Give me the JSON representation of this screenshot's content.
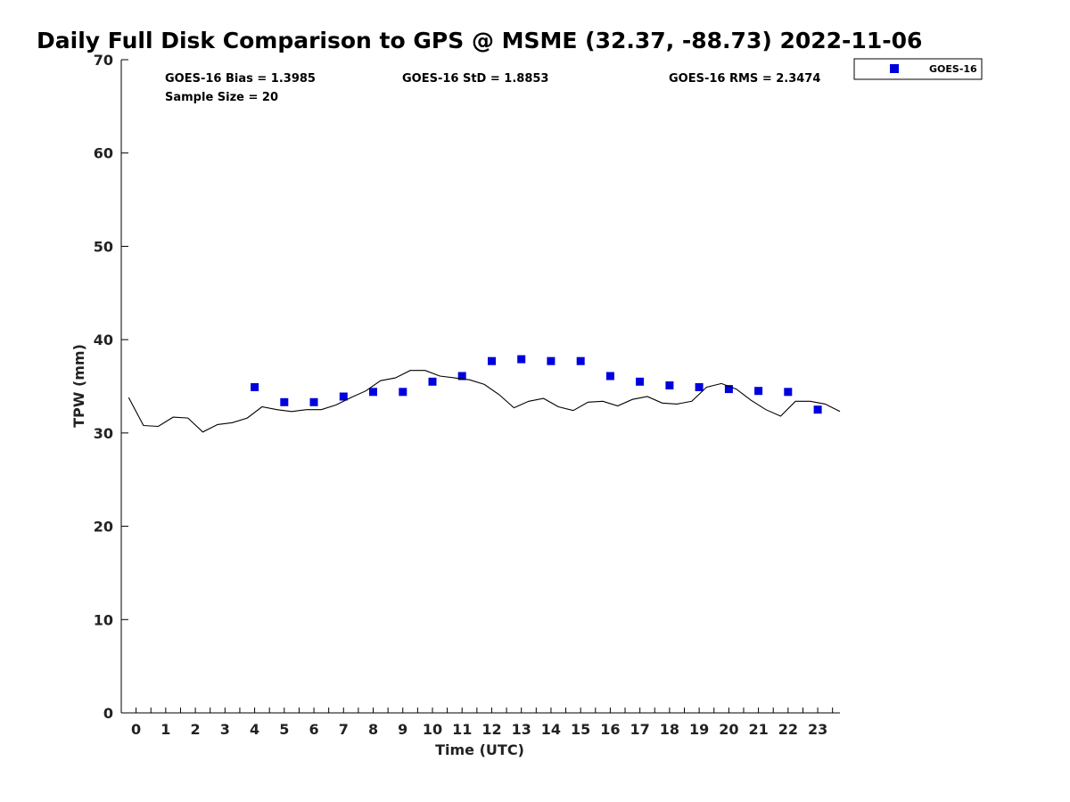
{
  "chart_data": {
    "type": "scatter",
    "title": "Daily Full Disk Comparison to GPS @ MSME (32.37, -88.73) 2022-11-06",
    "xlabel": "Time (UTC)",
    "ylabel": "TPW (mm)",
    "xlim": [
      -0.5,
      23.75
    ],
    "ylim": [
      0,
      70
    ],
    "x_ticks": [
      "0",
      "1",
      "2",
      "3",
      "4",
      "5",
      "6",
      "7",
      "8",
      "9",
      "10",
      "11",
      "12",
      "13",
      "14",
      "15",
      "16",
      "17",
      "18",
      "19",
      "20",
      "21",
      "22",
      "23"
    ],
    "y_ticks": [
      "0",
      "10",
      "20",
      "30",
      "40",
      "50",
      "60",
      "70"
    ],
    "grid": false,
    "stats": {
      "bias": "GOES-16 Bias = 1.3985",
      "std": "GOES-16 StD = 1.8853",
      "rms": "GOES-16 RMS = 2.3474",
      "sample": "Sample Size = 20"
    },
    "legend": {
      "position": "top-right-outside",
      "entries": [
        "GOES-16"
      ]
    },
    "series": [
      {
        "name": "GOES-16",
        "kind": "scatter",
        "marker": "square",
        "color": "#0000dd",
        "x": [
          4,
          5,
          6,
          7,
          8,
          9,
          10,
          11,
          12,
          13,
          14,
          15,
          16,
          17,
          18,
          19,
          20,
          21,
          22,
          23
        ],
        "y": [
          34.9,
          33.3,
          33.3,
          33.9,
          34.4,
          34.4,
          35.5,
          36.1,
          37.7,
          37.9,
          37.7,
          37.7,
          36.1,
          35.5,
          35.1,
          34.9,
          34.7,
          34.5,
          34.4,
          32.5
        ]
      },
      {
        "kind": "line",
        "color": "#000000",
        "x": [
          -0.25,
          0.25,
          0.75,
          1.25,
          1.75,
          2.25,
          2.75,
          3.25,
          3.75,
          4.25,
          4.75,
          5.25,
          5.75,
          6.25,
          6.75,
          7.25,
          7.75,
          8.25,
          8.75,
          9.25,
          9.75,
          10.25,
          10.75,
          11.25,
          11.75,
          12.25,
          12.75,
          13.25,
          13.75,
          14.25,
          14.75,
          15.25,
          15.75,
          16.25,
          16.75,
          17.25,
          17.75,
          18.25,
          18.75,
          19.25,
          19.75,
          20.25,
          20.75,
          21.25,
          21.75,
          22.25,
          22.75,
          23.25,
          23.75
        ],
        "y": [
          33.8,
          30.8,
          30.7,
          31.7,
          31.6,
          30.1,
          30.9,
          31.1,
          31.6,
          32.8,
          32.5,
          32.3,
          32.5,
          32.5,
          33.0,
          33.8,
          34.5,
          35.6,
          35.9,
          36.7,
          36.7,
          36.1,
          35.9,
          35.7,
          35.2,
          34.1,
          32.7,
          33.4,
          33.7,
          32.8,
          32.4,
          33.3,
          33.4,
          32.9,
          33.6,
          33.9,
          33.2,
          33.1,
          33.4,
          34.9,
          35.3,
          34.7,
          33.5,
          32.5,
          31.8,
          33.4,
          33.4,
          33.1,
          32.3
        ]
      }
    ]
  }
}
